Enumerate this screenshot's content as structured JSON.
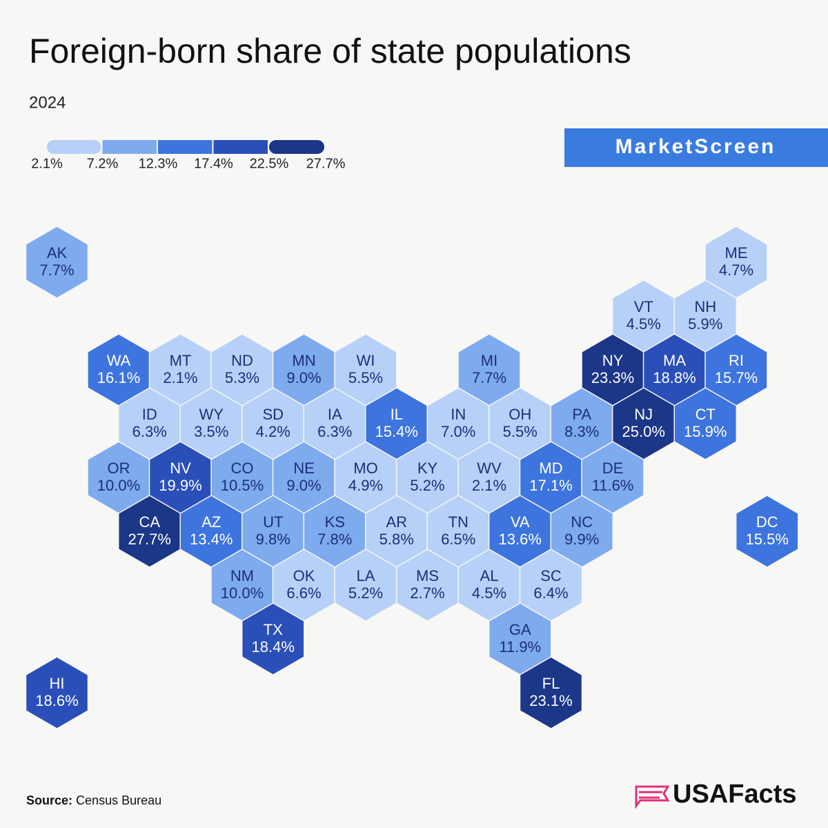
{
  "chart_data": {
    "type": "hexmap",
    "title": "Foreign-born share of state populations",
    "subtitle": "2024",
    "legend": {
      "ticks": [
        {
          "value": 2.1,
          "label": "2.1%"
        },
        {
          "value": 7.2,
          "label": "7.2%"
        },
        {
          "value": 12.3,
          "label": "12.3%"
        },
        {
          "value": 17.4,
          "label": "17.4%"
        },
        {
          "value": 22.5,
          "label": "22.5%"
        },
        {
          "value": 27.7,
          "label": "27.7%"
        }
      ],
      "colors": [
        "#b6d0f7",
        "#7eaaee",
        "#3d74de",
        "#2a4fb8",
        "#1c3688"
      ]
    },
    "categories": [
      "AK",
      "ME",
      "VT",
      "NH",
      "WA",
      "MT",
      "ND",
      "MN",
      "WI",
      "MI",
      "NY",
      "MA",
      "RI",
      "ID",
      "WY",
      "SD",
      "IA",
      "IL",
      "IN",
      "OH",
      "PA",
      "NJ",
      "CT",
      "OR",
      "NV",
      "CO",
      "NE",
      "MO",
      "KY",
      "WV",
      "MD",
      "DE",
      "CA",
      "AZ",
      "UT",
      "KS",
      "AR",
      "TN",
      "VA",
      "NC",
      "DC",
      "NM",
      "OK",
      "LA",
      "MS",
      "AL",
      "SC",
      "TX",
      "GA",
      "HI",
      "FL"
    ],
    "values": [
      7.7,
      4.7,
      4.5,
      5.9,
      16.1,
      2.1,
      5.3,
      9.0,
      5.5,
      7.7,
      23.3,
      18.8,
      15.7,
      6.3,
      3.5,
      4.2,
      6.3,
      15.4,
      7.0,
      5.5,
      8.3,
      25.0,
      15.9,
      10.0,
      19.9,
      10.5,
      9.0,
      4.9,
      5.2,
      2.1,
      17.1,
      11.6,
      27.7,
      13.4,
      9.8,
      7.8,
      5.8,
      6.5,
      13.6,
      9.9,
      15.5,
      10.0,
      6.6,
      5.2,
      2.7,
      4.5,
      6.4,
      18.4,
      11.9,
      18.6,
      23.1
    ],
    "value_labels": [
      "7.7%",
      "4.7%",
      "4.5%",
      "5.9%",
      "16.1%",
      "2.1%",
      "5.3%",
      "9.0%",
      "5.5%",
      "7.7%",
      "23.3%",
      "18.8%",
      "15.7%",
      "6.3%",
      "3.5%",
      "4.2%",
      "6.3%",
      "15.4%",
      "7.0%",
      "5.5%",
      "8.3%",
      "25.0%",
      "15.9%",
      "10.0%",
      "19.9%",
      "10.5%",
      "9.0%",
      "4.9%",
      "5.2%",
      "2.1%",
      "17.1%",
      "11.6%",
      "27.7%",
      "13.4%",
      "9.8%",
      "7.8%",
      "5.8%",
      "6.5%",
      "13.6%",
      "9.9%",
      "15.5%",
      "10.0%",
      "6.6%",
      "5.2%",
      "2.7%",
      "4.5%",
      "6.4%",
      "18.4%",
      "11.9%",
      "18.6%",
      "23.1%"
    ]
  },
  "brand": "MarketScreen",
  "source": {
    "label": "Source:",
    "text": "Census Bureau"
  },
  "logo": "USAFacts"
}
